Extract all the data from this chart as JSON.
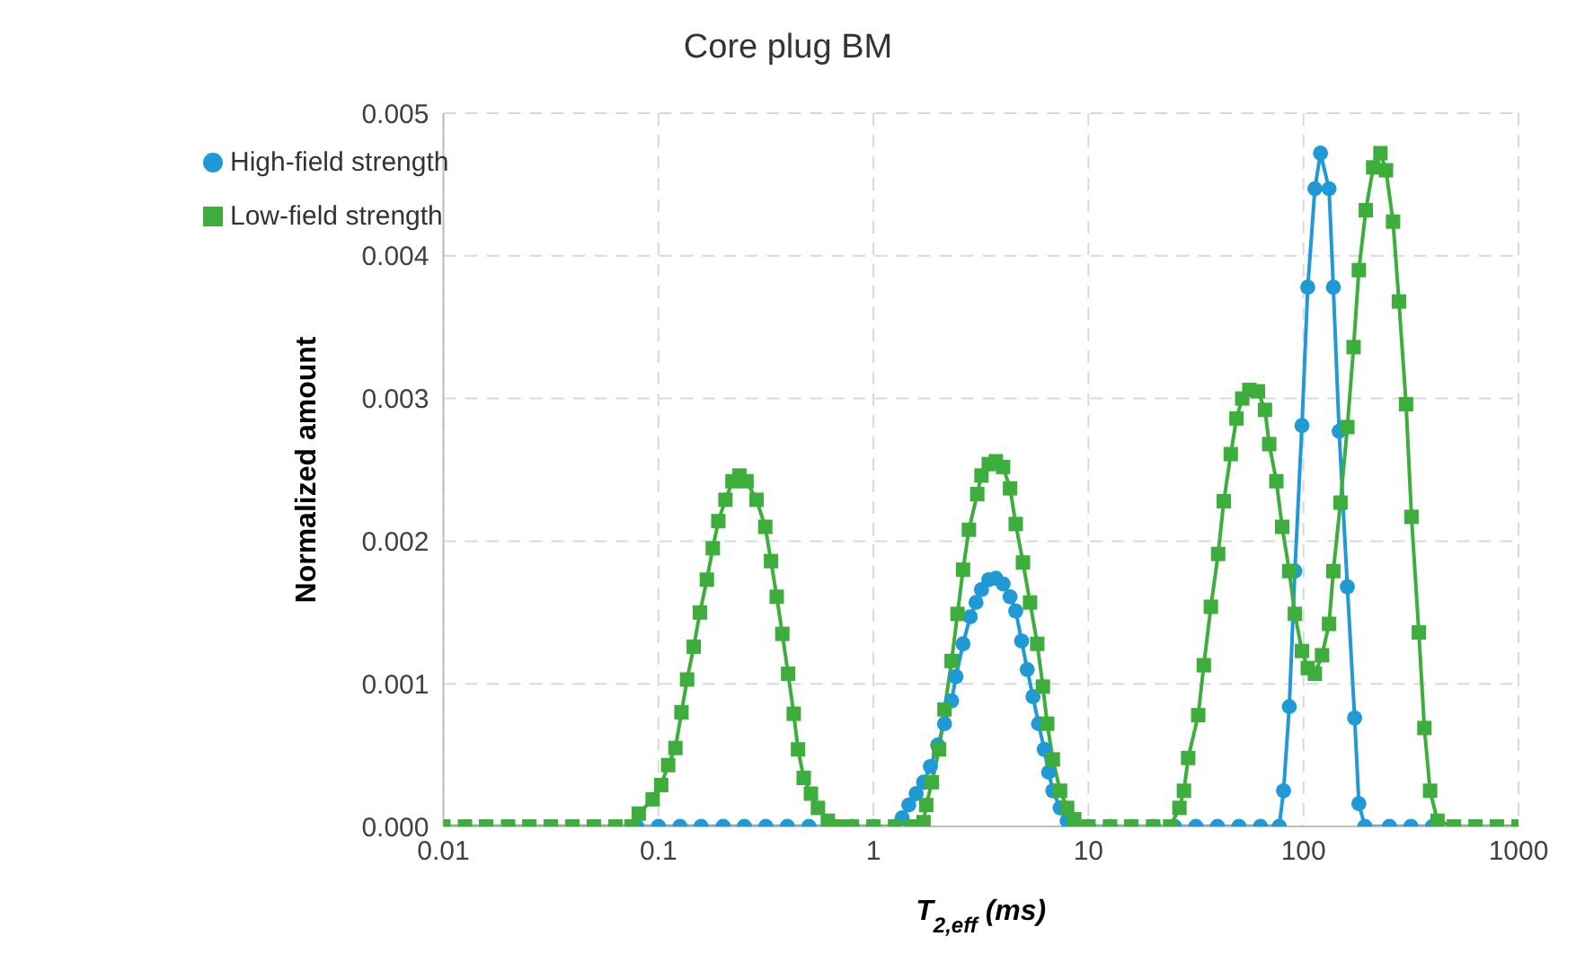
{
  "chart_data": {
    "type": "line",
    "title": "Core plug BM",
    "xlabel": "T$_{2,eff}$ (ms)",
    "ylabel": "Normalized amount",
    "log": "x",
    "grid": true,
    "legend": "top left",
    "line_style": "solid",
    "xlim": [
      0.01,
      1000
    ],
    "xticks": [
      0.01,
      0.1,
      1,
      10,
      100,
      1000
    ],
    "ylim": [
      0,
      0.005
    ],
    "yticks": [
      {
        "value": 0,
        "label": "0.000"
      },
      {
        "value": 0.001,
        "label": "0.001"
      },
      {
        "value": 0.002,
        "label": "0.002"
      },
      {
        "value": 0.003,
        "label": "0.003"
      },
      {
        "value": 0.004,
        "label": "0.004"
      },
      {
        "value": 0.005,
        "label": "0.005"
      }
    ],
    "series": [
      {
        "name": "High-field strength",
        "color": "#1f9ad6",
        "marker": "circle",
        "x": [
          0.0794,
          0.1,
          0.126,
          0.158,
          0.2,
          0.251,
          0.316,
          0.398,
          0.501,
          0.631,
          0.794,
          1,
          1.26,
          1.36,
          1.46,
          1.58,
          1.71,
          1.84,
          1.99,
          2.14,
          2.31,
          2.42,
          2.61,
          2.82,
          3.0,
          3.18,
          3.44,
          3.71,
          4.01,
          4.32,
          4.59,
          4.89,
          5.19,
          5.52,
          5.86,
          6.23,
          6.53,
          6.83,
          7.38,
          7.96,
          8.6,
          10,
          12.6,
          15.8,
          20,
          25.1,
          31.6,
          39.8,
          50.1,
          63.1,
          77.1,
          80.8,
          85.9,
          91.2,
          98.4,
          104.7,
          113,
          120,
          131.5,
          137.7,
          146.5,
          160,
          173,
          181,
          193,
          251,
          316,
          398
        ],
        "values": [
          0,
          0,
          0,
          0,
          0,
          0,
          0,
          0,
          0,
          0,
          0,
          0,
          0,
          6e-05,
          0.00015,
          0.00023,
          0.00031,
          0.00042,
          0.00057,
          0.00072,
          0.00088,
          0.00105,
          0.00128,
          0.00147,
          0.00157,
          0.00166,
          0.00173,
          0.00174,
          0.0017,
          0.00161,
          0.00151,
          0.0013,
          0.0011,
          0.00091,
          0.00072,
          0.00054,
          0.00038,
          0.00025,
          0.00013,
          4e-05,
          0,
          0,
          0,
          0,
          0,
          0,
          0,
          0,
          0,
          0,
          0,
          0.00025,
          0.00084,
          0.00179,
          0.00281,
          0.00378,
          0.00447,
          0.00472,
          0.00447,
          0.00378,
          0.00277,
          0.00168,
          0.00076,
          0.00016,
          0,
          0,
          0,
          0
        ]
      },
      {
        "name": "Low-field strength",
        "color": "#3dae3b",
        "marker": "square",
        "x": [
          0.01,
          0.0126,
          0.0158,
          0.02,
          0.0251,
          0.0316,
          0.0398,
          0.0501,
          0.0631,
          0.075,
          0.081,
          0.094,
          0.103,
          0.111,
          0.12,
          0.128,
          0.136,
          0.146,
          0.156,
          0.168,
          0.179,
          0.19,
          0.205,
          0.221,
          0.238,
          0.257,
          0.286,
          0.314,
          0.334,
          0.355,
          0.377,
          0.401,
          0.426,
          0.446,
          0.474,
          0.512,
          0.552,
          0.614,
          0.7,
          0.794,
          1,
          1.26,
          1.5,
          1.71,
          1.76,
          1.87,
          2.02,
          2.14,
          2.31,
          2.46,
          2.61,
          2.78,
          3.04,
          3.18,
          3.44,
          3.71,
          4.01,
          4.32,
          4.59,
          4.96,
          5.35,
          5.78,
          6.14,
          6.43,
          6.83,
          7.38,
          7.96,
          8.59,
          10,
          12.6,
          15.8,
          20,
          24,
          26.5,
          27.8,
          29.1,
          32.4,
          34.4,
          37.1,
          40.1,
          42.6,
          45.9,
          48.8,
          51.9,
          56.0,
          61.4,
          66.2,
          69.3,
          74.8,
          79.6,
          85.9,
          91.2,
          98.4,
          104.7,
          113,
          122,
          131.5,
          137.7,
          148.6,
          160,
          171,
          181,
          195,
          211,
          228,
          242,
          261,
          278,
          300,
          318,
          344,
          365,
          388,
          420,
          501,
          631,
          794,
          1000
        ],
        "values": [
          0,
          0,
          0,
          0,
          0,
          0,
          0,
          0,
          0,
          0,
          9e-05,
          0.00019,
          0.00029,
          0.00043,
          0.00055,
          0.0008,
          0.00103,
          0.00126,
          0.0015,
          0.00173,
          0.00195,
          0.00214,
          0.00229,
          0.00242,
          0.00246,
          0.00242,
          0.00229,
          0.0021,
          0.00186,
          0.00161,
          0.00135,
          0.00107,
          0.00079,
          0.00054,
          0.00034,
          0.00023,
          0.00013,
          4e-05,
          0,
          0,
          0,
          0,
          0,
          3e-05,
          0.00015,
          0.00031,
          0.00054,
          0.00082,
          0.00116,
          0.00149,
          0.0018,
          0.00208,
          0.00233,
          0.00246,
          0.00254,
          0.00256,
          0.00252,
          0.00237,
          0.00212,
          0.00185,
          0.00157,
          0.00128,
          0.00098,
          0.00072,
          0.00047,
          0.00025,
          0.00013,
          5e-05,
          0,
          0,
          0,
          0,
          0,
          0.00013,
          0.00025,
          0.00048,
          0.00078,
          0.00113,
          0.00154,
          0.00191,
          0.00228,
          0.00261,
          0.00286,
          0.003,
          0.00306,
          0.00305,
          0.00292,
          0.00268,
          0.00242,
          0.0021,
          0.00179,
          0.00149,
          0.00123,
          0.00111,
          0.00107,
          0.0012,
          0.00142,
          0.00179,
          0.00227,
          0.0028,
          0.00336,
          0.0039,
          0.00432,
          0.00462,
          0.00472,
          0.0046,
          0.00424,
          0.00368,
          0.00296,
          0.00217,
          0.00136,
          0.00069,
          0.00025,
          4e-05,
          0,
          0,
          0,
          0
        ]
      }
    ]
  }
}
